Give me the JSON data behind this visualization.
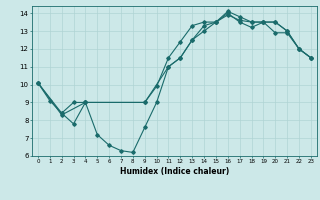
{
  "xlabel": "Humidex (Indice chaleur)",
  "bg_color": "#cce8e8",
  "grid_color": "#b0d4d4",
  "line_color": "#1a6b6b",
  "xlim": [
    -0.5,
    23.5
  ],
  "ylim": [
    6,
    14.4
  ],
  "xticks": [
    0,
    1,
    2,
    3,
    4,
    5,
    6,
    7,
    8,
    9,
    10,
    11,
    12,
    13,
    14,
    15,
    16,
    17,
    18,
    19,
    20,
    21,
    22,
    23
  ],
  "yticks": [
    6,
    7,
    8,
    9,
    10,
    11,
    12,
    13,
    14
  ],
  "series1_x": [
    0,
    1,
    2,
    3,
    4,
    9,
    10,
    11,
    12,
    13,
    14,
    15,
    16,
    17,
    18,
    19,
    20,
    21,
    22,
    23
  ],
  "series1_y": [
    10.1,
    9.1,
    8.4,
    9.0,
    9.0,
    9.0,
    9.9,
    11.5,
    12.4,
    13.3,
    13.5,
    13.5,
    14.1,
    13.8,
    13.5,
    13.5,
    12.9,
    12.9,
    12.0,
    11.5
  ],
  "series2_x": [
    0,
    2,
    3,
    4,
    5,
    6,
    7,
    8,
    9,
    10,
    11,
    12,
    13,
    14,
    15,
    16,
    17,
    18,
    19,
    20,
    21,
    22,
    23
  ],
  "series2_y": [
    10.1,
    8.4,
    7.8,
    9.0,
    7.2,
    6.6,
    6.3,
    6.2,
    7.6,
    9.0,
    11.0,
    11.5,
    12.5,
    13.0,
    13.5,
    14.0,
    13.5,
    13.2,
    13.5,
    13.5,
    13.0,
    12.0,
    11.5
  ],
  "series3_x": [
    0,
    2,
    4,
    9,
    11,
    12,
    13,
    14,
    15,
    16,
    17,
    18,
    19,
    20,
    21,
    22,
    23
  ],
  "series3_y": [
    10.1,
    8.3,
    9.0,
    9.0,
    11.0,
    11.5,
    12.5,
    13.3,
    13.5,
    13.9,
    13.6,
    13.5,
    13.5,
    13.5,
    13.0,
    12.0,
    11.5
  ]
}
